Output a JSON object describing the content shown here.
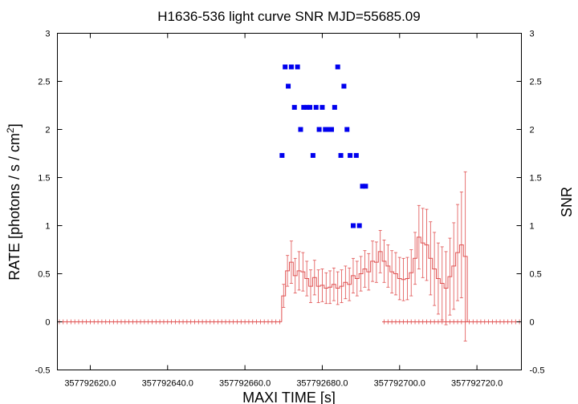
{
  "chart_data": {
    "type": "scatter",
    "title": "H1636-536 light curve  SNR MJD=55685.09",
    "xlabel": "MAXI TIME [s]",
    "ylabel_left": "RATE [photons / s / cm",
    "ylabel_left_sup": "2",
    "ylabel_left_end": "]",
    "ylabel_right": "SNR",
    "x_offset": 357792600,
    "xlim": [
      357792611.5,
      357792731.5
    ],
    "ylim": [
      -0.5,
      3
    ],
    "y2lim": [
      -0.5,
      3
    ],
    "x_ticks": [
      {
        "v": 357792620,
        "label": "357792620.0"
      },
      {
        "v": 357792640,
        "label": "357792640.0"
      },
      {
        "v": 357792660,
        "label": "357792660.0"
      },
      {
        "v": 357792680,
        "label": "357792680.0"
      },
      {
        "v": 357792700,
        "label": "357792700.0"
      },
      {
        "v": 357792720,
        "label": "357792720.0"
      }
    ],
    "y_ticks": [
      {
        "v": -0.5,
        "label": "-0.5"
      },
      {
        "v": 0,
        "label": "0"
      },
      {
        "v": 0.5,
        "label": "0.5"
      },
      {
        "v": 1,
        "label": "1"
      },
      {
        "v": 1.5,
        "label": "1.5"
      },
      {
        "v": 2,
        "label": "2"
      },
      {
        "v": 2.5,
        "label": "2.5"
      },
      {
        "v": 3,
        "label": "3"
      }
    ],
    "colors": {
      "rate": "#e05050",
      "snr": "#0000ee",
      "axis": "#000000"
    },
    "series": [
      {
        "kind": "rate_step_with_errors",
        "bin_width": 1,
        "x_start": 357792611.5,
        "baseline": {
          "from": 357792611.5,
          "to": 357792669.5,
          "value": 0
        },
        "baseline2": {
          "from": 357792695.5,
          "to": 357792731.5,
          "value": 0
        },
        "active_x_start": 357792669.5,
        "values": [
          0.27,
          0.53,
          0.62,
          0.48,
          0.53,
          0.52,
          0.45,
          0.37,
          0.46,
          0.37,
          0.38,
          0.35,
          0.36,
          0.39,
          0.35,
          0.37,
          0.41,
          0.39,
          0.48,
          0.45,
          0.5,
          0.55,
          0.52,
          0.63,
          0.62,
          0.73,
          0.63,
          0.58,
          0.52,
          0.5,
          0.45,
          0.44,
          0.45,
          0.51,
          0.66,
          0.88,
          0.82,
          0.8,
          0.66,
          0.55,
          0.45,
          0.4,
          0.35,
          0.47,
          0.58,
          0.72,
          0.8,
          0.68
        ],
        "errors": [
          0.12,
          0.16,
          0.22,
          0.18,
          0.2,
          0.2,
          0.18,
          0.17,
          0.18,
          0.17,
          0.17,
          0.16,
          0.17,
          0.17,
          0.17,
          0.17,
          0.17,
          0.17,
          0.18,
          0.18,
          0.18,
          0.19,
          0.19,
          0.21,
          0.21,
          0.22,
          0.22,
          0.22,
          0.22,
          0.22,
          0.22,
          0.22,
          0.22,
          0.24,
          0.27,
          0.33,
          0.36,
          0.37,
          0.38,
          0.38,
          0.37,
          0.38,
          0.38,
          0.4,
          0.45,
          0.5,
          0.55,
          0.88
        ]
      },
      {
        "kind": "snr_points",
        "x": [
          357792669.6,
          357792670.4,
          357792671.2,
          357792672.0,
          357792672.8,
          357792673.6,
          357792674.4,
          357792675.2,
          357792676.0,
          357792676.8,
          357792677.6,
          357792678.4,
          357792679.2,
          357792680.0,
          357792680.8,
          357792681.6,
          357792682.4,
          357792683.2,
          357792684.0,
          357792684.8,
          357792685.6,
          357792686.4,
          357792687.2,
          357792688.0,
          357792688.8,
          357792689.6,
          357792690.4,
          357792691.2,
          357792692.0,
          357792692.8,
          357792693.6,
          357792694.2
        ],
        "y": [
          1.73,
          2.65,
          2.45,
          2.65,
          2.23,
          2.65,
          2.0,
          2.23,
          2.23,
          2.23,
          1.73,
          2.23,
          2.0,
          2.23,
          2.0,
          2.0,
          2.0,
          2.23,
          2.65,
          1.73,
          2.45,
          2.0,
          1.73,
          1.0,
          1.73,
          1.0,
          1.41,
          1.41,
          null,
          null,
          null,
          null
        ]
      }
    ]
  }
}
